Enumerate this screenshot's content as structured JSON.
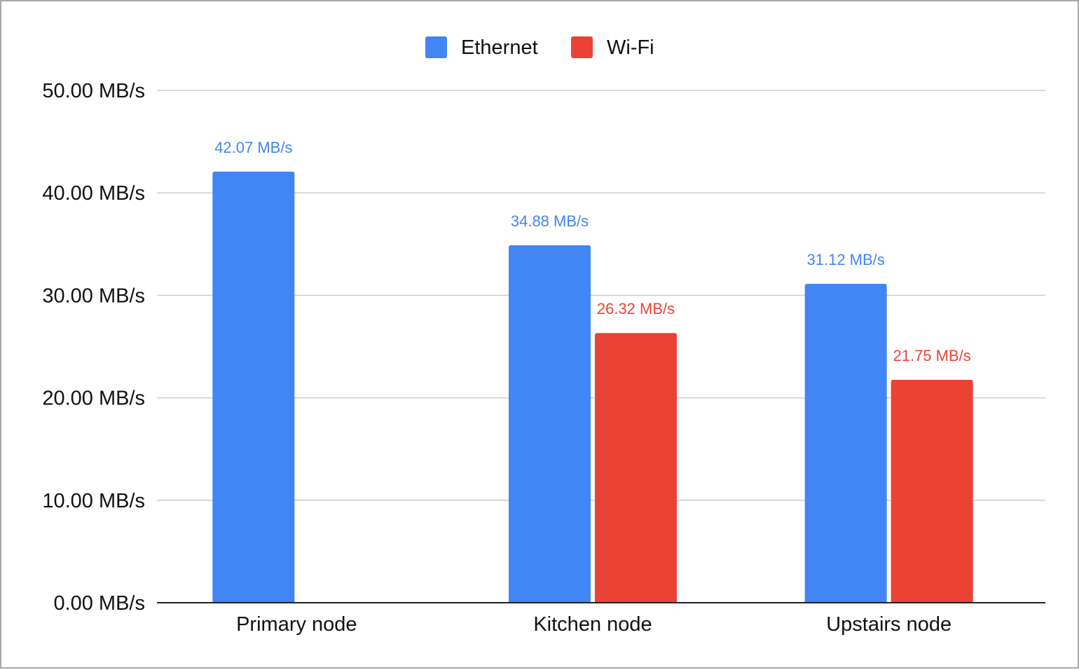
{
  "chart_data": {
    "type": "bar",
    "categories": [
      "Primary node",
      "Kitchen node",
      "Upstairs node"
    ],
    "series": [
      {
        "name": "Ethernet",
        "color": "#4285f4",
        "values": [
          42.07,
          34.88,
          31.12
        ],
        "labels": [
          "42.07 MB/s",
          "34.88 MB/s",
          "31.12 MB/s"
        ]
      },
      {
        "name": "Wi-Fi",
        "color": "#ea4335",
        "values": [
          null,
          26.32,
          21.75
        ],
        "labels": [
          "",
          "26.32 MB/s",
          "21.75 MB/s"
        ]
      }
    ],
    "yticks": [
      0,
      10,
      20,
      30,
      40,
      50
    ],
    "ytick_labels": [
      "0.00 MB/s",
      "10.00 MB/s",
      "20.00 MB/s",
      "30.00 MB/s",
      "40.00 MB/s",
      "50.00 MB/s"
    ],
    "ylim": [
      0,
      50
    ],
    "grid": true,
    "legend_position": "top-center",
    "title": "",
    "xlabel": "",
    "ylabel": ""
  }
}
